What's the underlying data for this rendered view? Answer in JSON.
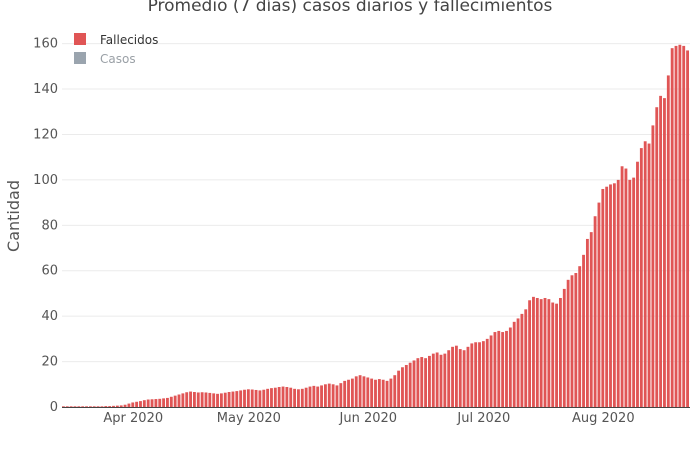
{
  "chart_data": {
    "type": "bar",
    "title": "Promedio (7 días) casos diarios y fallecimientos",
    "xlabel": "",
    "ylabel": "Cantidad",
    "x_start_label": "2020-03-14",
    "x_tick_labels": [
      "Apr 2020",
      "May 2020",
      "Jun 2020",
      "Jul 2020",
      "Aug 2020"
    ],
    "x_tick_dates": [
      "2020-04-01",
      "2020-05-01",
      "2020-06-01",
      "2020-07-01",
      "2020-08-01"
    ],
    "y_ticks": [
      0,
      20,
      40,
      60,
      80,
      100,
      120,
      140,
      160
    ],
    "ylim": [
      0,
      166
    ],
    "grid": true,
    "legend_position": "top-left",
    "series": [
      {
        "name": "Fallecidos",
        "color": "#e05555",
        "visible": true,
        "values": [
          0.3,
          0.3,
          0.3,
          0.3,
          0.3,
          0.3,
          0.3,
          0.3,
          0.3,
          0.3,
          0.3,
          0.4,
          0.4,
          0.5,
          0.6,
          0.7,
          1.0,
          1.5,
          2.0,
          2.3,
          2.6,
          3.0,
          3.3,
          3.4,
          3.5,
          3.6,
          3.8,
          4.0,
          4.5,
          5.0,
          5.5,
          6.0,
          6.5,
          6.8,
          6.6,
          6.4,
          6.5,
          6.4,
          6.2,
          6.0,
          5.8,
          6.0,
          6.3,
          6.6,
          6.8,
          7.0,
          7.3,
          7.6,
          7.8,
          7.7,
          7.5,
          7.3,
          7.6,
          8.0,
          8.3,
          8.5,
          8.8,
          9.0,
          8.8,
          8.5,
          8.0,
          7.8,
          8.0,
          8.5,
          9.0,
          9.3,
          9.0,
          9.5,
          10.0,
          10.3,
          10.0,
          9.5,
          10.5,
          11.5,
          12.0,
          12.5,
          13.5,
          14.0,
          13.5,
          13.0,
          12.5,
          12.0,
          12.3,
          12.0,
          11.5,
          12.5,
          14.0,
          16.0,
          17.5,
          18.5,
          19.5,
          20.5,
          21.5,
          22.0,
          21.5,
          22.5,
          23.5,
          24.0,
          23.0,
          23.5,
          25.0,
          26.5,
          27.0,
          25.5,
          25.0,
          26.5,
          28.0,
          28.5,
          28.5,
          29.0,
          30.0,
          31.5,
          33.0,
          33.5,
          33.0,
          33.5,
          35.0,
          37.5,
          39.0,
          41.0,
          43.0,
          47.0,
          48.5,
          48.0,
          47.5,
          48.0,
          47.5,
          46.0,
          45.5,
          48.0,
          52.0,
          56.0,
          58.0,
          59.0,
          62.0,
          67.0,
          74.0,
          77.0,
          84.0,
          90.0,
          96.0,
          97.0,
          98.0,
          98.5,
          100.0,
          106.0,
          105.0,
          100.0,
          101.0,
          108.0,
          114.0,
          117.0,
          116.0,
          124.0,
          132.0,
          137.0,
          136.0,
          146.0,
          158.0,
          159.0,
          159.5,
          159.0,
          157.0
        ]
      },
      {
        "name": "Casos",
        "color": "#9aa4ae",
        "visible": false,
        "values": []
      }
    ]
  }
}
